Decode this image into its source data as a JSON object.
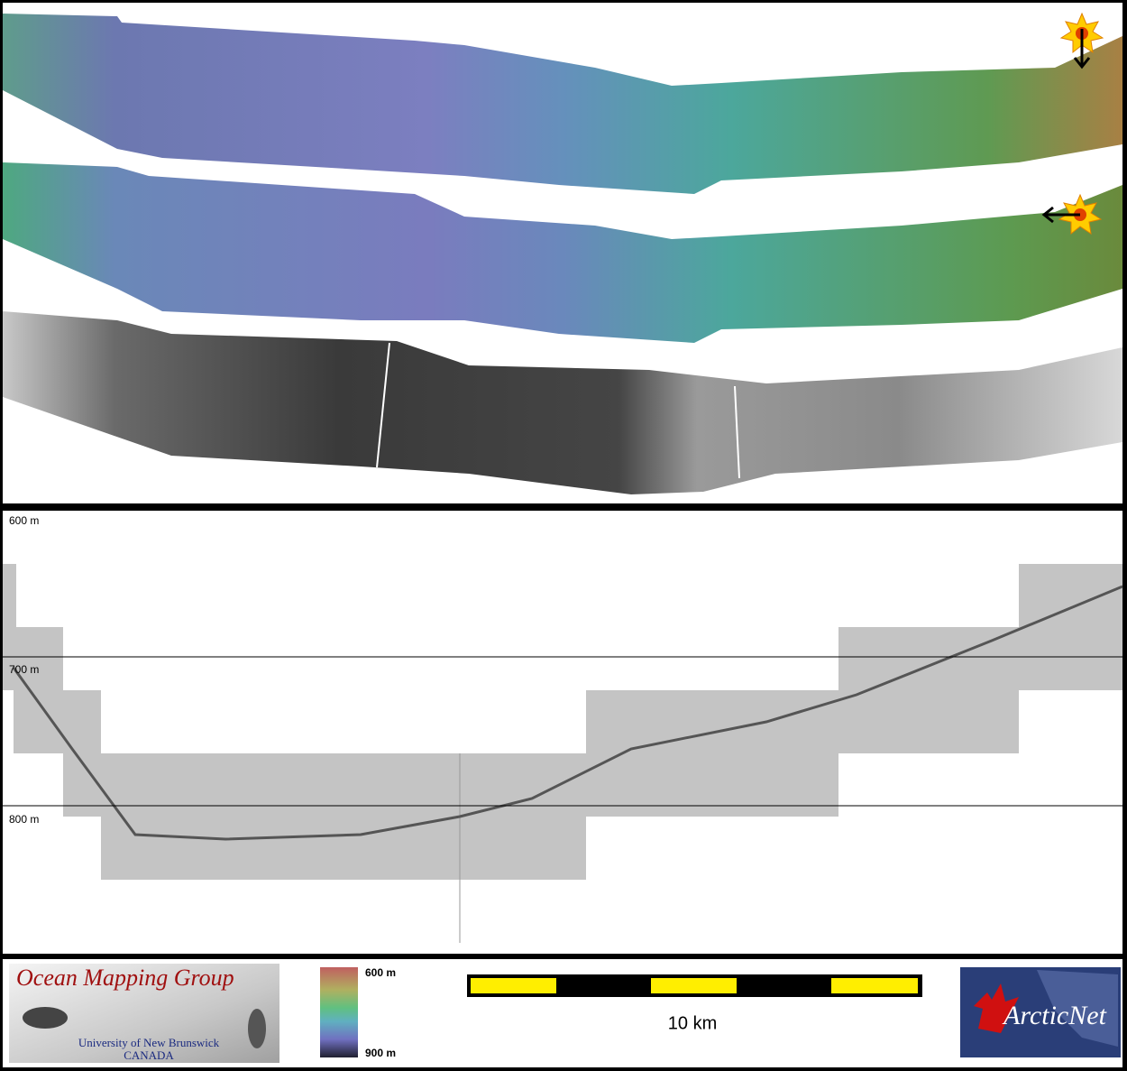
{
  "profile": {
    "depth_labels": [
      "600 m",
      "700 m",
      "800 m"
    ]
  },
  "legend": {
    "logo": {
      "title": "Ocean Mapping Group",
      "university": "University of New Brunswick",
      "country": "CANADA"
    },
    "colorbar": {
      "top": "600 m",
      "bottom": "900 m"
    },
    "scale": "10 km",
    "partner": "ArcticNet"
  }
}
